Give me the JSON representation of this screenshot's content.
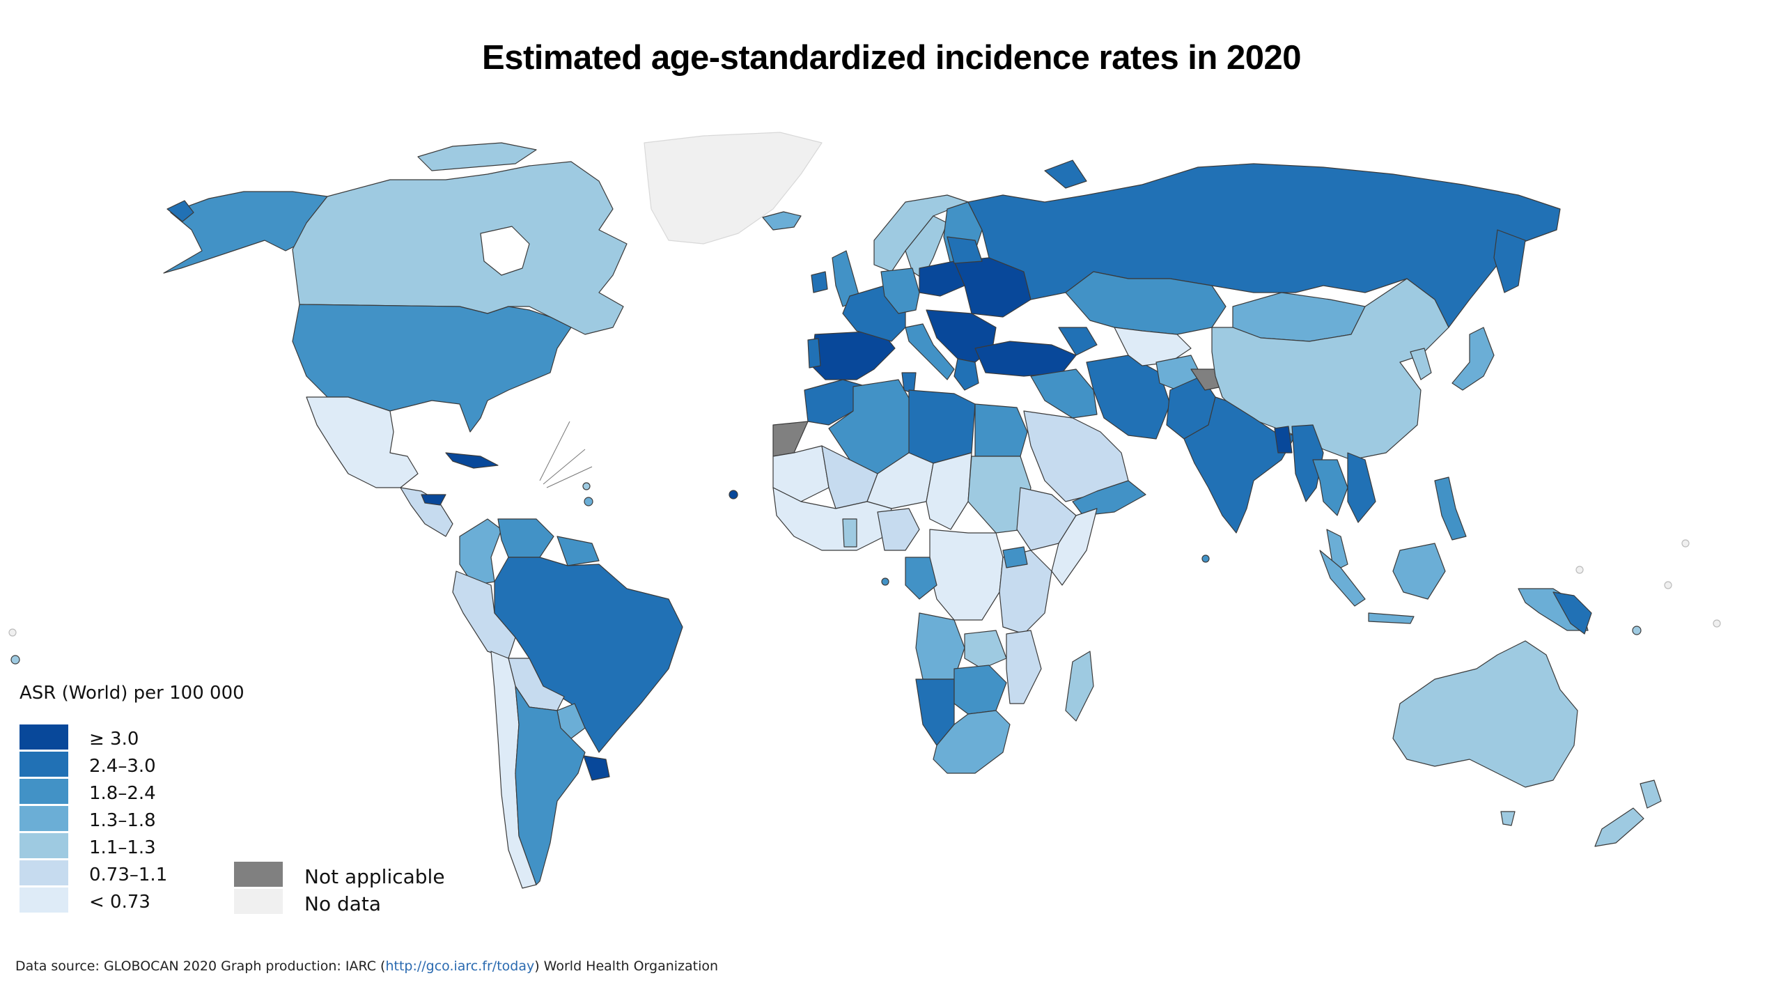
{
  "title": "Estimated age-standardized incidence rates in 2020",
  "legend": {
    "title": "ASR (World) per 100 000",
    "classes": [
      {
        "label": "≥ 3.0",
        "color": "#08489a"
      },
      {
        "label": "2.4–3.0",
        "color": "#2171b5"
      },
      {
        "label": "1.8–2.4",
        "color": "#4292c6"
      },
      {
        "label": "1.3–1.8",
        "color": "#6baed6"
      },
      {
        "label": "1.1–1.3",
        "color": "#9ecae1"
      },
      {
        "label": "0.73–1.1",
        "color": "#c6dbef"
      },
      {
        "label": "< 0.73",
        "color": "#deebf7"
      }
    ],
    "extra": [
      {
        "label": "Not applicable",
        "color": "#808080"
      },
      {
        "label": "No data",
        "color": "#f0f0f0"
      }
    ]
  },
  "source": {
    "prefix": "Data source: GLOBOCAN 2020 Graph production: IARC (",
    "link": "http://gco.iarc.fr/today",
    "suffix": ") World Health Organization"
  }
}
